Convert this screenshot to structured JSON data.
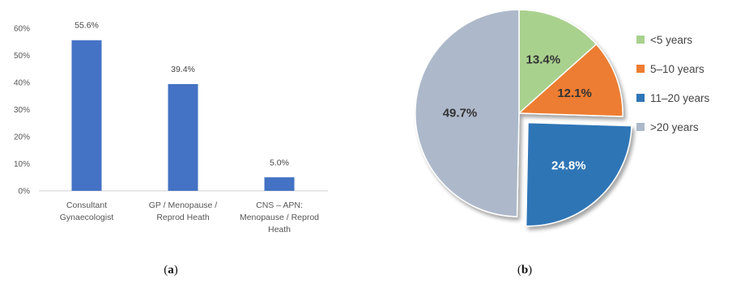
{
  "panels": {
    "a_caption": {
      "open": "(",
      "letter": "a",
      "close": ")"
    },
    "b_caption": {
      "open": "(",
      "letter": "b",
      "close": ")"
    }
  },
  "chart_data": [
    {
      "panel": "a",
      "type": "bar",
      "categories": [
        [
          "Consultant",
          "Gynaecologist"
        ],
        [
          "GP / Menopause /",
          "Reprod Heath"
        ],
        [
          "CNS – APN:",
          "Menopause / Reprod",
          "Heath"
        ]
      ],
      "values": [
        55.6,
        39.4,
        5.0
      ],
      "data_labels": [
        "55.6%",
        "39.4%",
        "5.0%"
      ],
      "yticks": [
        "0%",
        "10%",
        "20%",
        "30%",
        "40%",
        "50%",
        "60%"
      ],
      "ylim": [
        0,
        60
      ],
      "grid": false,
      "color": "#4472C4"
    },
    {
      "panel": "b",
      "type": "pie",
      "slices": [
        {
          "label": "<5 years",
          "value": 13.4,
          "display": "13.4%",
          "color": "#A9D18E",
          "text_light": false
        },
        {
          "label": "5–10 years",
          "value": 12.1,
          "display": "12.1%",
          "color": "#ED7D31",
          "text_light": false
        },
        {
          "label": "11–20 years",
          "value": 24.8,
          "display": "24.8%",
          "color": "#2E75B6",
          "text_light": true,
          "exploded": true
        },
        {
          "label": ">20 years",
          "value": 49.7,
          "display": "49.7%",
          "color": "#ADB9CA",
          "text_light": false
        }
      ],
      "legend_position": "right"
    }
  ]
}
